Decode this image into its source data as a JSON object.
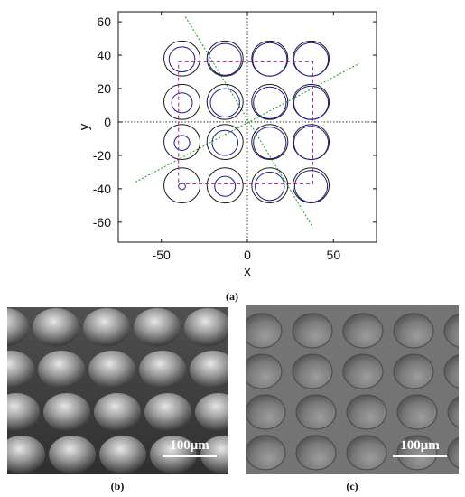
{
  "figure": {
    "panel_a_label": "(a)",
    "panel_b_label": "(b)",
    "panel_c_label": "(c)",
    "panel_b_scale": "100μm",
    "panel_c_scale": "100μm"
  },
  "chart_data": {
    "type": "scatter",
    "xlabel": "x",
    "ylabel": "y",
    "xlim": [
      -75,
      75
    ],
    "ylim": [
      -72,
      66
    ],
    "x_ticks": [
      -50,
      0,
      50
    ],
    "y_ticks": [
      60,
      40,
      20,
      0,
      -20,
      -40,
      -60
    ],
    "grid": false,
    "lens_array": {
      "centers_x": [
        -38,
        -13,
        13,
        37
      ],
      "centers_y": [
        38,
        12,
        -12,
        -38
      ],
      "outer_radius": 10.5,
      "inner_radius_matrix": [
        [
          7.5,
          9.5,
          10,
          10
        ],
        [
          6,
          8.5,
          9.5,
          10
        ],
        [
          4.5,
          7.5,
          9.5,
          10
        ],
        [
          2,
          6,
          8.5,
          9.5
        ]
      ]
    },
    "dashed_rectangle": {
      "x": [
        -40,
        38
      ],
      "y": [
        -37,
        36
      ]
    },
    "dotted_lines": [
      {
        "from": [
          -65,
          -36
        ],
        "to": [
          65,
          35
        ]
      },
      {
        "from": [
          -36,
          63
        ],
        "to": [
          38,
          -63
        ]
      }
    ],
    "colors": {
      "outer_circle": "#1a1a1a",
      "inner_circle": "#1a1a8c",
      "dashed_rectangle": "#a020a0",
      "dotted_lines": "#2aa02a",
      "axes_lines": "#111111"
    }
  }
}
